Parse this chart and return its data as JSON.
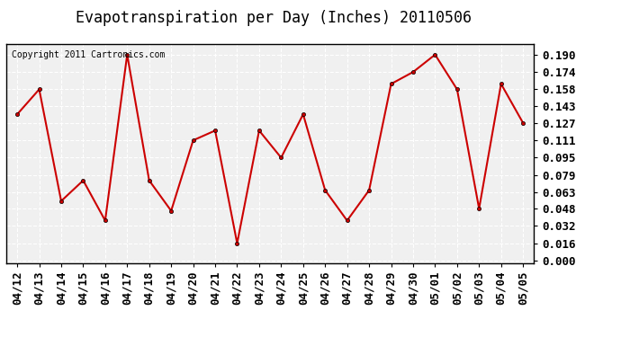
{
  "title": "Evapotranspiration per Day (Inches) 20110506",
  "copyright_text": "Copyright 2011 Cartronics.com",
  "x_labels": [
    "04/12",
    "04/13",
    "04/14",
    "04/15",
    "04/16",
    "04/17",
    "04/18",
    "04/19",
    "04/20",
    "04/21",
    "04/22",
    "04/23",
    "04/24",
    "04/25",
    "04/26",
    "04/27",
    "04/28",
    "04/29",
    "04/30",
    "05/01",
    "05/02",
    "05/03",
    "05/04",
    "05/05"
  ],
  "y_values": [
    0.135,
    0.158,
    0.055,
    0.074,
    0.037,
    0.19,
    0.074,
    0.046,
    0.111,
    0.12,
    0.016,
    0.12,
    0.095,
    0.135,
    0.065,
    0.037,
    0.065,
    0.163,
    0.174,
    0.19,
    0.158,
    0.048,
    0.163,
    0.127
  ],
  "line_color": "#cc0000",
  "marker": "o",
  "marker_size": 3,
  "line_width": 1.5,
  "bg_color": "#f0f0f0",
  "grid_color": "#ffffff",
  "ylim_min": 0.0,
  "ylim_max": 0.2,
  "yticks": [
    0.0,
    0.016,
    0.032,
    0.048,
    0.063,
    0.079,
    0.095,
    0.111,
    0.127,
    0.143,
    0.158,
    0.174,
    0.19
  ],
  "title_fontsize": 12,
  "tick_fontsize": 9,
  "copyright_fontsize": 7
}
